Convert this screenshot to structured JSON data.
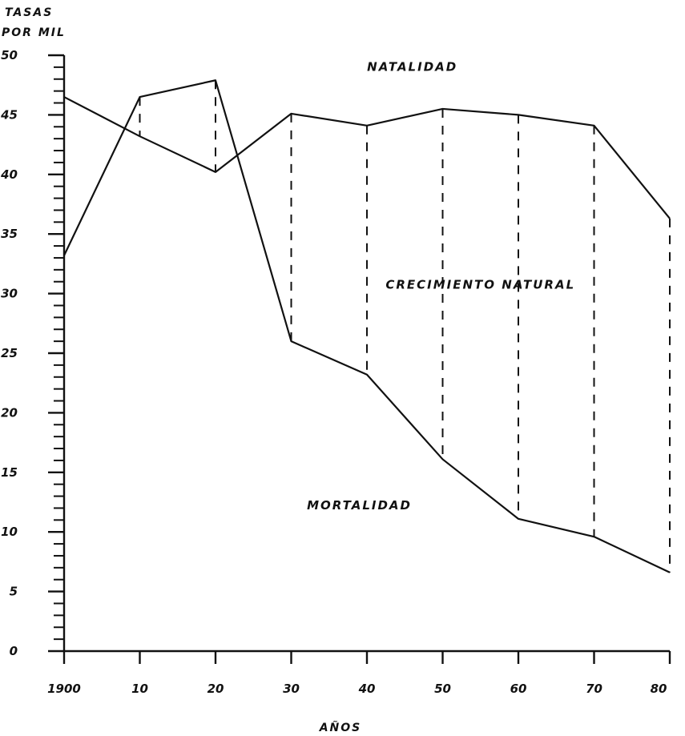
{
  "chart_data": {
    "type": "line",
    "ylabel_lines": [
      "TASAS",
      "POR MIL"
    ],
    "xlabel": "AÑOS",
    "x": [
      1900,
      1910,
      1920,
      1930,
      1940,
      1950,
      1960,
      1970,
      1980
    ],
    "x_tick_labels": [
      "1900",
      "10",
      "20",
      "30",
      "40",
      "50",
      "60",
      "70",
      "80"
    ],
    "y_tick_values": [
      0,
      5,
      10,
      15,
      20,
      25,
      30,
      35,
      40,
      45,
      50
    ],
    "y_tick_labels": [
      "0",
      "5",
      "10",
      "15",
      "20",
      "25",
      "30",
      "35",
      "40",
      "45",
      "50"
    ],
    "ylim": [
      0,
      50
    ],
    "xlim": [
      1900,
      1980
    ],
    "series": [
      {
        "name": "NATALIDAD",
        "values": [
          46.5,
          43.2,
          40.2,
          45.1,
          44.1,
          45.5,
          45.0,
          44.1,
          36.3
        ]
      },
      {
        "name": "MORTALIDAD",
        "values": [
          33.2,
          46.5,
          47.9,
          26.0,
          23.2,
          16.1,
          11.1,
          9.6,
          6.6
        ]
      }
    ],
    "annotations": [
      {
        "text": "NATALIDAD",
        "x": 1946,
        "y": 48.7
      },
      {
        "text": "CRECIMIENTO NATURAL",
        "x": 1955,
        "y": 30.4
      },
      {
        "text": "MORTALIDAD",
        "x": 1939,
        "y": 11.9
      }
    ],
    "dashed_drop_lines": true,
    "grid": false,
    "legend": "none"
  }
}
